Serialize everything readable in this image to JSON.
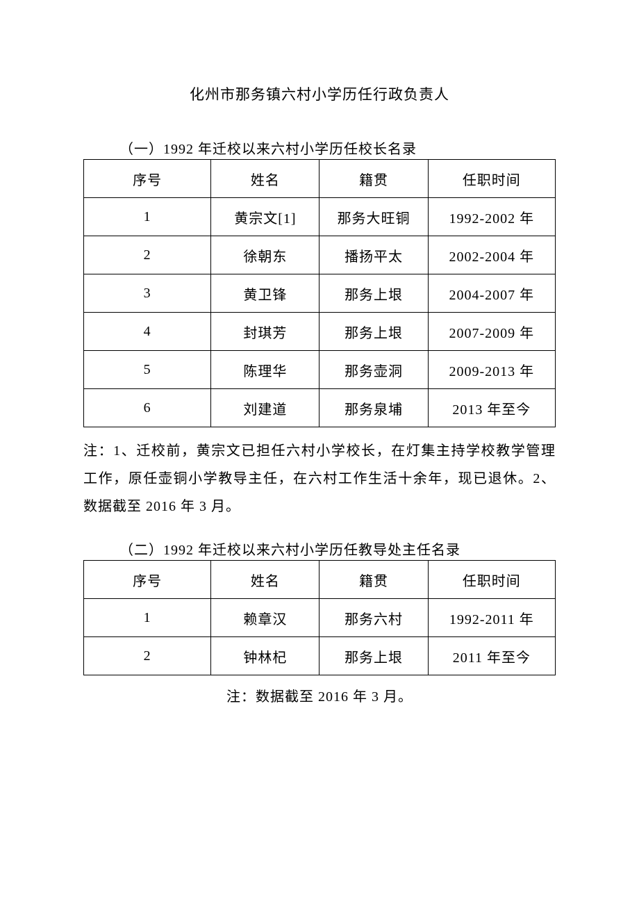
{
  "document": {
    "title": "化州市那务镇六村小学历任行政负责人"
  },
  "section1": {
    "title": "（一）1992 年迁校以来六村小学历任校长名录",
    "headers": {
      "c1": "序号",
      "c2": "姓名",
      "c3": "籍贯",
      "c4": "任职时间"
    },
    "rows": [
      {
        "c1": "1",
        "c2": "黄宗文[1]",
        "c3": "那务大旺铜",
        "c4": "1992-2002 年"
      },
      {
        "c1": "2",
        "c2": "徐朝东",
        "c3": "播扬平太",
        "c4": "2002-2004 年"
      },
      {
        "c1": "3",
        "c2": "黄卫锋",
        "c3": "那务上垠",
        "c4": "2004-2007 年"
      },
      {
        "c1": "4",
        "c2": "封琪芳",
        "c3": "那务上垠",
        "c4": "2007-2009 年"
      },
      {
        "c1": "5",
        "c2": "陈理华",
        "c3": "那务壶洞",
        "c4": "2009-2013 年"
      },
      {
        "c1": "6",
        "c2": "刘建道",
        "c3": "那务泉埔",
        "c4": "2013 年至今"
      }
    ],
    "note": "注：1、迁校前，黄宗文已担任六村小学校长，在灯集主持学校教学管理工作，原任壶铜小学教导主任，在六村工作生活十余年，现已退休。2、数据截至 2016 年 3 月。"
  },
  "section2": {
    "title": "（二）1992 年迁校以来六村小学历任教导处主任名录",
    "headers": {
      "c1": "序号",
      "c2": "姓名",
      "c3": "籍贯",
      "c4": "任职时间"
    },
    "rows": [
      {
        "c1": "1",
        "c2": "赖章汉",
        "c3": "那务六村",
        "c4": "1992-2011 年"
      },
      {
        "c1": "2",
        "c2": "钟林杞",
        "c3": "那务上垠",
        "c4": "2011 年至今"
      }
    ],
    "note": "注：数据截至 2016 年 3 月。"
  }
}
